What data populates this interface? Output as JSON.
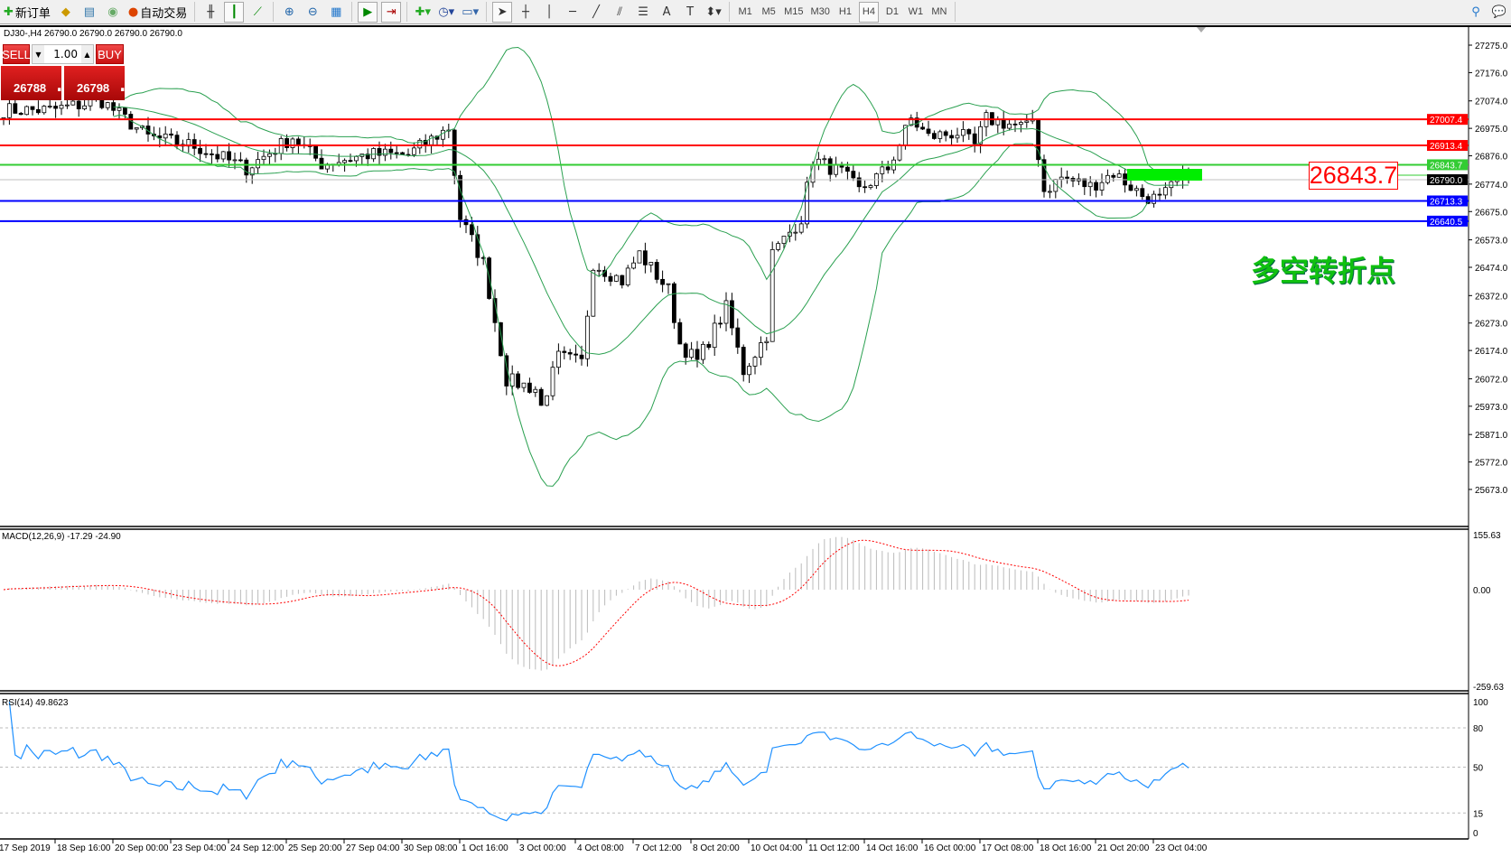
{
  "toolbar": {
    "new_order": "新订单",
    "auto_trading": "自动交易",
    "timeframes": [
      "M1",
      "M5",
      "M15",
      "M30",
      "H1",
      "H4",
      "D1",
      "W1",
      "MN"
    ],
    "active_timeframe": "H4"
  },
  "chart_header": "DJ30-,H4  26790.0 26790.0 26790.0 26790.0",
  "trade_panel": {
    "sell": "SELL",
    "buy": "BUY",
    "lot": "1.00",
    "bid_main": "26788",
    "bid_frac": ".5",
    "ask_main": "26798",
    "ask_frac": ".5"
  },
  "price_axis": [
    "27275.0",
    "27176.0",
    "27074.0",
    "26975.0",
    "26876.0",
    "26774.0",
    "26675.0",
    "26573.0",
    "26474.0",
    "26372.0",
    "26273.0",
    "26174.0",
    "26072.0",
    "25973.0",
    "25871.0",
    "25772.0",
    "25673.0"
  ],
  "levels": [
    {
      "value": "27007.4",
      "color": "#ff0000"
    },
    {
      "value": "26913.4",
      "color": "#ff0000"
    },
    {
      "value": "26843.7",
      "color": "#33cc33"
    },
    {
      "value": "26790.0",
      "color": "#000000",
      "line": "#c0c0c0"
    },
    {
      "value": "26713.3",
      "color": "#0000ff"
    },
    {
      "value": "26640.5",
      "color": "#0000ff"
    }
  ],
  "annotation_price": "26843.7",
  "annotation_text": "多空转折点",
  "macd": {
    "label": "MACD(12,26,9) -17.29 -24.90",
    "axis": [
      "155.63",
      "0.00",
      "-259.63"
    ]
  },
  "rsi": {
    "label": "RSI(14) 49.8623",
    "axis": [
      "100",
      "80",
      "50",
      "15",
      "0"
    ]
  },
  "time_axis": [
    "17 Sep 2019",
    "18 Sep 16:00",
    "20 Sep 00:00",
    "23 Sep 04:00",
    "24 Sep 12:00",
    "25 Sep 20:00",
    "27 Sep 04:00",
    "30 Sep 08:00",
    "1 Oct 16:00",
    "3 Oct 00:00",
    "4 Oct 08:00",
    "7 Oct 12:00",
    "8 Oct 20:00",
    "10 Oct 04:00",
    "11 Oct 12:00",
    "14 Oct 16:00",
    "16 Oct 00:00",
    "17 Oct 08:00",
    "18 Oct 16:00",
    "21 Oct 20:00",
    "23 Oct 04:00"
  ],
  "chart_data": {
    "type": "candlestick",
    "symbol": "DJ30-",
    "timeframe": "H4",
    "approx_close_path": [
      [
        0,
        27041
      ],
      [
        8,
        27041
      ],
      [
        17,
        27074
      ],
      [
        25,
        26944
      ],
      [
        33,
        26912
      ],
      [
        42,
        26831
      ],
      [
        50,
        26944
      ],
      [
        55,
        26847
      ],
      [
        63,
        26880
      ],
      [
        70,
        26880
      ],
      [
        77,
        26977
      ],
      [
        79,
        26652
      ],
      [
        83,
        26490
      ],
      [
        87,
        26069
      ],
      [
        92,
        26036
      ],
      [
        93,
        25971
      ],
      [
        96,
        26150
      ],
      [
        100,
        26130
      ],
      [
        102,
        26490
      ],
      [
        107,
        26425
      ],
      [
        110,
        26523
      ],
      [
        115,
        26393
      ],
      [
        117,
        26198
      ],
      [
        120,
        26134
      ],
      [
        125,
        26328
      ],
      [
        128,
        26100
      ],
      [
        132,
        26231
      ],
      [
        133,
        26523
      ],
      [
        138,
        26652
      ],
      [
        140,
        26863
      ],
      [
        145,
        26815
      ],
      [
        148,
        26750
      ],
      [
        153,
        26831
      ],
      [
        157,
        27009
      ],
      [
        160,
        26944
      ],
      [
        165,
        26960
      ],
      [
        168,
        26912
      ],
      [
        170,
        27009
      ],
      [
        177,
        26977
      ],
      [
        178,
        27009
      ],
      [
        180,
        26750
      ],
      [
        183,
        26798
      ],
      [
        188,
        26766
      ],
      [
        192,
        26815
      ],
      [
        197,
        26733
      ],
      [
        200,
        26717
      ],
      [
        203,
        26782
      ],
      [
        205,
        26790
      ]
    ],
    "indicators": [
      "Bollinger Bands",
      "MACD(12,26,9)",
      "RSI(14)"
    ]
  }
}
